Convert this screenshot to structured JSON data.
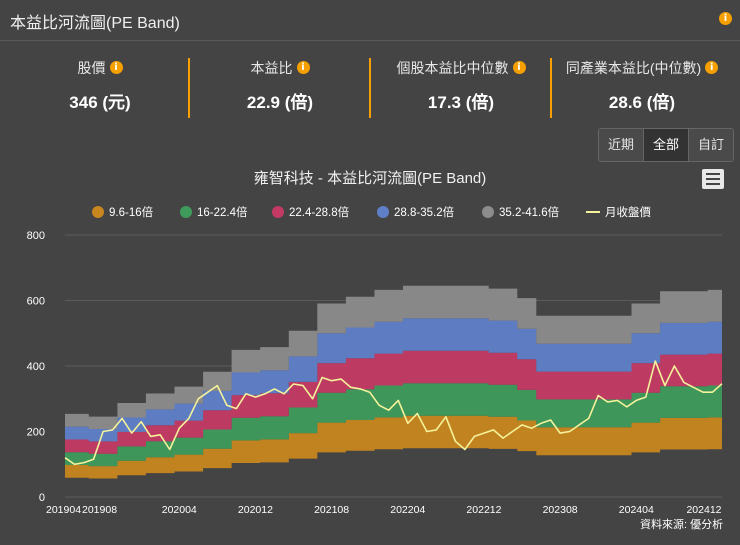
{
  "header": {
    "title": "本益比河流圖(PE Band)",
    "info_icon": "info-icon"
  },
  "stats": [
    {
      "label": "股價",
      "value": "346 (元)"
    },
    {
      "label": "本益比",
      "value": "22.9 (倍)"
    },
    {
      "label": "個股本益比中位數",
      "value": "17.3 (倍)"
    },
    {
      "label": "同產業本益比(中位數)",
      "value": "28.6 (倍)"
    }
  ],
  "range_buttons": [
    {
      "label": "近期"
    },
    {
      "label": "全部",
      "active": true
    },
    {
      "label": "自訂"
    }
  ],
  "colors": {
    "background": "#444444",
    "accent": "#f5a000",
    "band1": "#c8871e",
    "band2": "#3e9b5c",
    "band3": "#c43a65",
    "band4": "#5f7fc8",
    "band5": "#8c8c8c",
    "price_line": "#f5f29a"
  },
  "chart_data": {
    "type": "area",
    "title": "雍智科技 - 本益比河流圖(PE Band)",
    "ylim": [
      0,
      800
    ],
    "yticks": [
      0,
      200,
      400,
      600,
      800
    ],
    "xtick_labels": [
      "201904",
      "201908",
      "202004",
      "202012",
      "202108",
      "202204",
      "202212",
      "202308",
      "202404",
      "202412"
    ],
    "legend": [
      "9.6-16倍",
      "16-22.4倍",
      "22.4-28.8倍",
      "28.8-35.2倍",
      "35.2-41.6倍",
      "月收盤價"
    ],
    "months": [
      "201904",
      "201905",
      "201906",
      "201907",
      "201908",
      "201909",
      "201910",
      "201911",
      "201912",
      "202001",
      "202002",
      "202003",
      "202004",
      "202005",
      "202006",
      "202007",
      "202008",
      "202009",
      "202010",
      "202011",
      "202012",
      "202101",
      "202102",
      "202103",
      "202104",
      "202105",
      "202106",
      "202107",
      "202108",
      "202109",
      "202110",
      "202111",
      "202112",
      "202201",
      "202202",
      "202203",
      "202204",
      "202205",
      "202206",
      "202207",
      "202208",
      "202209",
      "202210",
      "202211",
      "202212",
      "202301",
      "202302",
      "202303",
      "202304",
      "202305",
      "202306",
      "202307",
      "202308",
      "202309",
      "202310",
      "202311",
      "202312",
      "202401",
      "202402",
      "202403",
      "202404",
      "202405",
      "202406",
      "202407",
      "202408",
      "202409",
      "202410",
      "202411",
      "202412",
      "202501"
    ],
    "eps_ttm": [
      6.1,
      6.1,
      6.1,
      5.9,
      5.9,
      5.9,
      6.9,
      6.9,
      6.9,
      7.6,
      7.6,
      7.6,
      8.1,
      8.1,
      8.1,
      9.2,
      9.2,
      9.2,
      10.8,
      10.8,
      10.8,
      11.0,
      11.0,
      11.0,
      12.2,
      12.2,
      12.2,
      14.2,
      14.2,
      14.2,
      14.7,
      14.7,
      14.7,
      15.2,
      15.2,
      15.2,
      15.5,
      15.5,
      15.5,
      15.5,
      15.5,
      15.5,
      15.5,
      15.5,
      15.5,
      15.3,
      15.3,
      15.3,
      14.6,
      14.6,
      13.3,
      13.3,
      13.3,
      13.3,
      13.3,
      13.3,
      13.3,
      13.3,
      13.3,
      13.3,
      14.2,
      14.2,
      14.2,
      15.1,
      15.1,
      15.1,
      15.1,
      15.1,
      15.2,
      15.2
    ],
    "pe_multiples": [
      9.6,
      16,
      22.4,
      28.8,
      35.2,
      41.6
    ],
    "series_price": {
      "name": "月收盤價",
      "values": [
        120,
        100,
        105,
        115,
        200,
        205,
        240,
        195,
        230,
        185,
        190,
        145,
        210,
        240,
        300,
        320,
        340,
        280,
        270,
        315,
        305,
        315,
        330,
        315,
        345,
        340,
        300,
        365,
        355,
        360,
        335,
        330,
        320,
        280,
        265,
        295,
        225,
        255,
        200,
        205,
        245,
        170,
        145,
        185,
        195,
        205,
        180,
        200,
        220,
        210,
        225,
        235,
        195,
        200,
        220,
        240,
        310,
        290,
        295,
        275,
        295,
        305,
        415,
        340,
        400,
        350,
        335,
        320,
        320,
        346
      ]
    }
  },
  "footer": {
    "source": "資料來源: 優分析"
  }
}
